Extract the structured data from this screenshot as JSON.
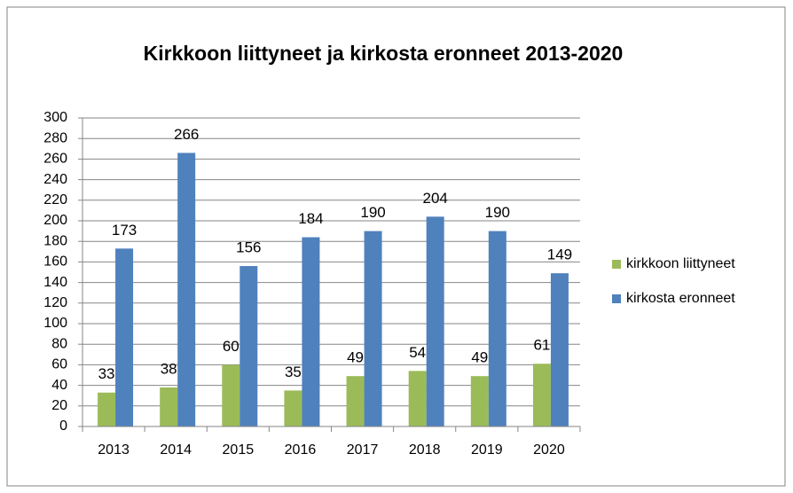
{
  "chart_data": {
    "type": "bar",
    "title": "Kirkkoon liittyneet ja kirkosta eronneet 2013-2020",
    "categories": [
      "2013",
      "2014",
      "2015",
      "2016",
      "2017",
      "2018",
      "2019",
      "2020"
    ],
    "series": [
      {
        "name": "kirkkoon liittyneet",
        "color": "#9bbb59",
        "values": [
          33,
          38,
          60,
          35,
          49,
          54,
          49,
          61
        ]
      },
      {
        "name": "kirkosta eronneet",
        "color": "#4f81bd",
        "values": [
          173,
          266,
          156,
          184,
          190,
          204,
          190,
          149
        ]
      }
    ],
    "ylim": [
      0,
      300
    ],
    "yticks": [
      0,
      20,
      40,
      60,
      80,
      100,
      120,
      140,
      160,
      180,
      200,
      220,
      240,
      260,
      280,
      300
    ],
    "grid": true,
    "legend": "right"
  }
}
